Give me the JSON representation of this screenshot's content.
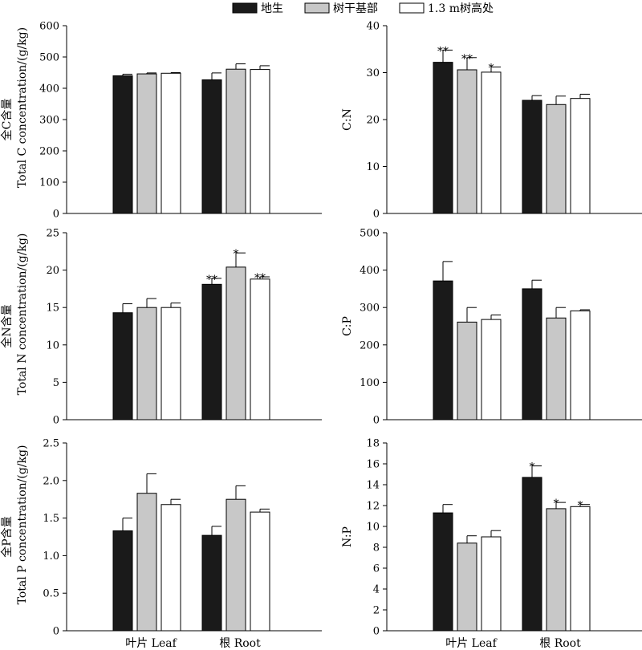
{
  "legend": {
    "items": [
      {
        "label": "地生",
        "color": "#1a1a1a"
      },
      {
        "label": "树干基部",
        "color": "#c8c8c8"
      },
      {
        "label": "1.3 m树高处",
        "color": "#ffffff"
      }
    ]
  },
  "colors": {
    "series": [
      "#1a1a1a",
      "#c8c8c8",
      "#ffffff"
    ],
    "stroke": "#000000"
  },
  "chart_data": [
    {
      "id": "total-c",
      "type": "bar",
      "ylabel_cn": "全C含量",
      "ylabel_en": "Total C concentration/(g/kg)",
      "ylim": [
        0,
        600
      ],
      "yticks": [
        "0",
        "100",
        "200",
        "300",
        "400",
        "500",
        "600"
      ],
      "categories": [
        "叶片 Leaf",
        "根 Root"
      ],
      "series": [
        {
          "values": [
            440,
            427
          ],
          "errors": [
            5,
            22
          ],
          "marks": [
            "",
            ""
          ]
        },
        {
          "values": [
            446,
            461
          ],
          "errors": [
            3,
            17
          ],
          "marks": [
            "",
            ""
          ]
        },
        {
          "values": [
            448,
            460
          ],
          "errors": [
            2,
            12
          ],
          "marks": [
            "",
            ""
          ]
        }
      ]
    },
    {
      "id": "c-n",
      "type": "bar",
      "ylabel_cn": "",
      "ylabel_en": "C:N",
      "ylim": [
        0,
        40
      ],
      "yticks": [
        "0",
        "10",
        "20",
        "30",
        "40"
      ],
      "categories": [
        "叶片 Leaf",
        "根 Root"
      ],
      "series": [
        {
          "values": [
            32.2,
            24.1
          ],
          "errors": [
            2.6,
            1.0
          ],
          "marks": [
            "**",
            ""
          ]
        },
        {
          "values": [
            30.6,
            23.2
          ],
          "errors": [
            2.6,
            1.8
          ],
          "marks": [
            "**",
            ""
          ]
        },
        {
          "values": [
            30.1,
            24.5
          ],
          "errors": [
            1.1,
            0.9
          ],
          "marks": [
            "*",
            ""
          ]
        }
      ]
    },
    {
      "id": "total-n",
      "type": "bar",
      "ylabel_cn": "全N含量",
      "ylabel_en": "Total N concentration/(g/kg)",
      "ylim": [
        0,
        25
      ],
      "yticks": [
        "0",
        "5",
        "10",
        "15",
        "20",
        "25"
      ],
      "categories": [
        "叶片 Leaf",
        "根 Root"
      ],
      "series": [
        {
          "values": [
            14.3,
            18.1
          ],
          "errors": [
            1.2,
            0.8
          ],
          "marks": [
            "",
            "**"
          ]
        },
        {
          "values": [
            15.0,
            20.4
          ],
          "errors": [
            1.2,
            1.9
          ],
          "marks": [
            "",
            "*"
          ]
        },
        {
          "values": [
            15.0,
            18.8
          ],
          "errors": [
            0.6,
            0.3
          ],
          "marks": [
            "",
            "**"
          ]
        }
      ]
    },
    {
      "id": "c-p",
      "type": "bar",
      "ylabel_cn": "",
      "ylabel_en": "C:P",
      "ylim": [
        0,
        500
      ],
      "yticks": [
        "0",
        "100",
        "200",
        "300",
        "400",
        "500"
      ],
      "categories": [
        "叶片 Leaf",
        "根 Root"
      ],
      "series": [
        {
          "values": [
            371,
            350
          ],
          "errors": [
            52,
            23
          ],
          "marks": [
            "",
            ""
          ]
        },
        {
          "values": [
            261,
            272
          ],
          "errors": [
            39,
            28
          ],
          "marks": [
            "",
            ""
          ]
        },
        {
          "values": [
            268,
            291
          ],
          "errors": [
            12,
            3
          ],
          "marks": [
            "",
            ""
          ]
        }
      ]
    },
    {
      "id": "total-p",
      "type": "bar",
      "ylabel_cn": "全P含量",
      "ylabel_en": "Total P concentration/(g/kg)",
      "ylim": [
        0,
        2.5
      ],
      "yticks": [
        "0",
        "0.5",
        "1.0",
        "1.5",
        "2.0",
        "2.5"
      ],
      "categories": [
        "叶片 Leaf",
        "根 Root"
      ],
      "series": [
        {
          "values": [
            1.33,
            1.27
          ],
          "errors": [
            0.17,
            0.12
          ],
          "marks": [
            "",
            ""
          ]
        },
        {
          "values": [
            1.83,
            1.75
          ],
          "errors": [
            0.26,
            0.18
          ],
          "marks": [
            "",
            ""
          ]
        },
        {
          "values": [
            1.68,
            1.58
          ],
          "errors": [
            0.07,
            0.04
          ],
          "marks": [
            "",
            ""
          ]
        }
      ]
    },
    {
      "id": "n-p",
      "type": "bar",
      "ylabel_cn": "",
      "ylabel_en": "N:P",
      "ylim": [
        0,
        18
      ],
      "yticks": [
        "0",
        "2",
        "4",
        "6",
        "8",
        "10",
        "12",
        "14",
        "16",
        "18"
      ],
      "categories": [
        "叶片 Leaf",
        "根 Root"
      ],
      "series": [
        {
          "values": [
            11.3,
            14.7
          ],
          "errors": [
            0.8,
            1.1
          ],
          "marks": [
            "",
            "*"
          ]
        },
        {
          "values": [
            8.4,
            11.7
          ],
          "errors": [
            0.7,
            0.6
          ],
          "marks": [
            "",
            "*"
          ]
        },
        {
          "values": [
            9.0,
            11.9
          ],
          "errors": [
            0.6,
            0.2
          ],
          "marks": [
            "",
            "*"
          ]
        }
      ]
    }
  ]
}
